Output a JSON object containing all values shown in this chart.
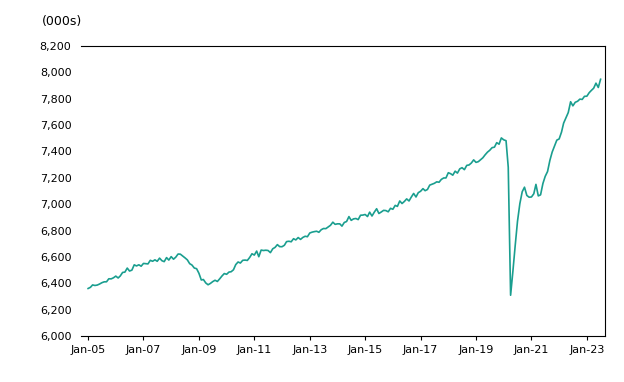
{
  "ylabel": "(000s)",
  "line_color": "#1a9e8f",
  "background_color": "#ffffff",
  "ylim": [
    6000,
    8200
  ],
  "yticks": [
    6000,
    6200,
    6400,
    6600,
    6800,
    7000,
    7200,
    7400,
    7600,
    7800,
    8000,
    8200
  ],
  "xtick_labels": [
    "Jan-05",
    "Jan-07",
    "Jan-09",
    "Jan-11",
    "Jan-13",
    "Jan-15",
    "Jan-17",
    "Jan-19",
    "Jan-21",
    "Jan-23"
  ],
  "xtick_years": [
    2005,
    2007,
    2009,
    2011,
    2013,
    2015,
    2017,
    2019,
    2021,
    2023
  ],
  "linewidth": 1.2,
  "data": [
    [
      2005,
      1,
      6355
    ],
    [
      2005,
      2,
      6372
    ],
    [
      2005,
      3,
      6380
    ],
    [
      2005,
      4,
      6365
    ],
    [
      2005,
      5,
      6390
    ],
    [
      2005,
      6,
      6398
    ],
    [
      2005,
      7,
      6385
    ],
    [
      2005,
      8,
      6402
    ],
    [
      2005,
      9,
      6418
    ],
    [
      2005,
      10,
      6428
    ],
    [
      2005,
      11,
      6440
    ],
    [
      2005,
      12,
      6448
    ],
    [
      2006,
      1,
      6452
    ],
    [
      2006,
      2,
      6465
    ],
    [
      2006,
      3,
      6478
    ],
    [
      2006,
      4,
      6490
    ],
    [
      2006,
      5,
      6498
    ],
    [
      2006,
      6,
      6512
    ],
    [
      2006,
      7,
      6505
    ],
    [
      2006,
      8,
      6518
    ],
    [
      2006,
      9,
      6522
    ],
    [
      2006,
      10,
      6535
    ],
    [
      2006,
      11,
      6540
    ],
    [
      2006,
      12,
      6548
    ],
    [
      2007,
      1,
      6558
    ],
    [
      2007,
      2,
      6548
    ],
    [
      2007,
      3,
      6562
    ],
    [
      2007,
      4,
      6570
    ],
    [
      2007,
      5,
      6575
    ],
    [
      2007,
      6,
      6582
    ],
    [
      2007,
      7,
      6575
    ],
    [
      2007,
      8,
      6568
    ],
    [
      2007,
      9,
      6572
    ],
    [
      2007,
      10,
      6578
    ],
    [
      2007,
      11,
      6585
    ],
    [
      2007,
      12,
      6592
    ],
    [
      2008,
      1,
      6600
    ],
    [
      2008,
      2,
      6608
    ],
    [
      2008,
      3,
      6615
    ],
    [
      2008,
      4,
      6620
    ],
    [
      2008,
      5,
      6612
    ],
    [
      2008,
      6,
      6605
    ],
    [
      2008,
      7,
      6595
    ],
    [
      2008,
      8,
      6582
    ],
    [
      2008,
      9,
      6568
    ],
    [
      2008,
      10,
      6548
    ],
    [
      2008,
      11,
      6522
    ],
    [
      2008,
      12,
      6498
    ],
    [
      2009,
      1,
      6472
    ],
    [
      2009,
      2,
      6448
    ],
    [
      2009,
      3,
      6425
    ],
    [
      2009,
      4,
      6408
    ],
    [
      2009,
      5,
      6398
    ],
    [
      2009,
      6,
      6392
    ],
    [
      2009,
      7,
      6400
    ],
    [
      2009,
      8,
      6412
    ],
    [
      2009,
      9,
      6425
    ],
    [
      2009,
      10,
      6438
    ],
    [
      2009,
      11,
      6452
    ],
    [
      2009,
      12,
      6462
    ],
    [
      2010,
      1,
      6475
    ],
    [
      2010,
      2,
      6488
    ],
    [
      2010,
      3,
      6502
    ],
    [
      2010,
      4,
      6518
    ],
    [
      2010,
      5,
      6532
    ],
    [
      2010,
      6,
      6545
    ],
    [
      2010,
      7,
      6555
    ],
    [
      2010,
      8,
      6562
    ],
    [
      2010,
      9,
      6572
    ],
    [
      2010,
      10,
      6582
    ],
    [
      2010,
      11,
      6592
    ],
    [
      2010,
      12,
      6605
    ],
    [
      2011,
      1,
      6615
    ],
    [
      2011,
      2,
      6625
    ],
    [
      2011,
      3,
      6635
    ],
    [
      2011,
      4,
      6642
    ],
    [
      2011,
      5,
      6648
    ],
    [
      2011,
      6,
      6655
    ],
    [
      2011,
      7,
      6648
    ],
    [
      2011,
      8,
      6658
    ],
    [
      2011,
      9,
      6665
    ],
    [
      2011,
      10,
      6668
    ],
    [
      2011,
      11,
      6675
    ],
    [
      2011,
      12,
      6685
    ],
    [
      2012,
      1,
      6688
    ],
    [
      2012,
      2,
      6695
    ],
    [
      2012,
      3,
      6705
    ],
    [
      2012,
      4,
      6715
    ],
    [
      2012,
      5,
      6722
    ],
    [
      2012,
      6,
      6732
    ],
    [
      2012,
      7,
      6728
    ],
    [
      2012,
      8,
      6735
    ],
    [
      2012,
      9,
      6742
    ],
    [
      2012,
      10,
      6752
    ],
    [
      2012,
      11,
      6762
    ],
    [
      2012,
      12,
      6772
    ],
    [
      2013,
      1,
      6778
    ],
    [
      2013,
      2,
      6785
    ],
    [
      2013,
      3,
      6792
    ],
    [
      2013,
      4,
      6798
    ],
    [
      2013,
      5,
      6805
    ],
    [
      2013,
      6,
      6812
    ],
    [
      2013,
      7,
      6820
    ],
    [
      2013,
      8,
      6825
    ],
    [
      2013,
      9,
      6830
    ],
    [
      2013,
      10,
      6835
    ],
    [
      2013,
      11,
      6840
    ],
    [
      2013,
      12,
      6845
    ],
    [
      2014,
      1,
      6848
    ],
    [
      2014,
      2,
      6852
    ],
    [
      2014,
      3,
      6858
    ],
    [
      2014,
      4,
      6862
    ],
    [
      2014,
      5,
      6868
    ],
    [
      2014,
      6,
      6875
    ],
    [
      2014,
      7,
      6880
    ],
    [
      2014,
      8,
      6885
    ],
    [
      2014,
      9,
      6892
    ],
    [
      2014,
      10,
      6898
    ],
    [
      2014,
      11,
      6902
    ],
    [
      2014,
      12,
      6908
    ],
    [
      2015,
      1,
      6912
    ],
    [
      2015,
      2,
      6918
    ],
    [
      2015,
      3,
      6922
    ],
    [
      2015,
      4,
      6928
    ],
    [
      2015,
      5,
      6932
    ],
    [
      2015,
      6,
      6938
    ],
    [
      2015,
      7,
      6942
    ],
    [
      2015,
      8,
      6948
    ],
    [
      2015,
      9,
      6952
    ],
    [
      2015,
      10,
      6958
    ],
    [
      2015,
      11,
      6962
    ],
    [
      2015,
      12,
      6968
    ],
    [
      2016,
      1,
      6975
    ],
    [
      2016,
      2,
      6985
    ],
    [
      2016,
      3,
      6995
    ],
    [
      2016,
      4,
      7005
    ],
    [
      2016,
      5,
      7015
    ],
    [
      2016,
      6,
      7025
    ],
    [
      2016,
      7,
      7030
    ],
    [
      2016,
      8,
      7040
    ],
    [
      2016,
      9,
      7052
    ],
    [
      2016,
      10,
      7065
    ],
    [
      2016,
      11,
      7075
    ],
    [
      2016,
      12,
      7085
    ],
    [
      2017,
      1,
      7095
    ],
    [
      2017,
      2,
      7108
    ],
    [
      2017,
      3,
      7118
    ],
    [
      2017,
      4,
      7128
    ],
    [
      2017,
      5,
      7138
    ],
    [
      2017,
      6,
      7148
    ],
    [
      2017,
      7,
      7155
    ],
    [
      2017,
      8,
      7165
    ],
    [
      2017,
      9,
      7175
    ],
    [
      2017,
      10,
      7185
    ],
    [
      2017,
      11,
      7195
    ],
    [
      2017,
      12,
      7208
    ],
    [
      2018,
      1,
      7215
    ],
    [
      2018,
      2,
      7225
    ],
    [
      2018,
      3,
      7235
    ],
    [
      2018,
      4,
      7242
    ],
    [
      2018,
      5,
      7248
    ],
    [
      2018,
      6,
      7258
    ],
    [
      2018,
      7,
      7262
    ],
    [
      2018,
      8,
      7272
    ],
    [
      2018,
      9,
      7282
    ],
    [
      2018,
      10,
      7292
    ],
    [
      2018,
      11,
      7302
    ],
    [
      2018,
      12,
      7312
    ],
    [
      2019,
      1,
      7320
    ],
    [
      2019,
      2,
      7332
    ],
    [
      2019,
      3,
      7348
    ],
    [
      2019,
      4,
      7362
    ],
    [
      2019,
      5,
      7375
    ],
    [
      2019,
      6,
      7390
    ],
    [
      2019,
      7,
      7405
    ],
    [
      2019,
      8,
      7418
    ],
    [
      2019,
      9,
      7432
    ],
    [
      2019,
      10,
      7448
    ],
    [
      2019,
      11,
      7458
    ],
    [
      2019,
      12,
      7468
    ],
    [
      2020,
      1,
      7480
    ],
    [
      2020,
      2,
      7492
    ],
    [
      2020,
      3,
      7280
    ],
    [
      2020,
      4,
      6310
    ],
    [
      2020,
      5,
      6490
    ],
    [
      2020,
      6,
      6680
    ],
    [
      2020,
      7,
      6865
    ],
    [
      2020,
      8,
      7005
    ],
    [
      2020,
      9,
      7105
    ],
    [
      2020,
      10,
      7148
    ],
    [
      2020,
      11,
      7072
    ],
    [
      2020,
      12,
      7042
    ],
    [
      2021,
      1,
      7052
    ],
    [
      2021,
      2,
      7095
    ],
    [
      2021,
      3,
      7148
    ],
    [
      2021,
      4,
      7058
    ],
    [
      2021,
      5,
      7082
    ],
    [
      2021,
      6,
      7155
    ],
    [
      2021,
      7,
      7210
    ],
    [
      2021,
      8,
      7262
    ],
    [
      2021,
      9,
      7328
    ],
    [
      2021,
      10,
      7388
    ],
    [
      2021,
      11,
      7428
    ],
    [
      2021,
      12,
      7472
    ],
    [
      2022,
      1,
      7512
    ],
    [
      2022,
      2,
      7558
    ],
    [
      2022,
      3,
      7608
    ],
    [
      2022,
      4,
      7648
    ],
    [
      2022,
      5,
      7688
    ],
    [
      2022,
      6,
      7728
    ],
    [
      2022,
      7,
      7738
    ],
    [
      2022,
      8,
      7758
    ],
    [
      2022,
      9,
      7768
    ],
    [
      2022,
      10,
      7788
    ],
    [
      2022,
      11,
      7798
    ],
    [
      2022,
      12,
      7808
    ],
    [
      2023,
      1,
      7828
    ],
    [
      2023,
      2,
      7848
    ],
    [
      2023,
      3,
      7868
    ],
    [
      2023,
      4,
      7878
    ],
    [
      2023,
      5,
      7888
    ],
    [
      2023,
      6,
      7908
    ],
    [
      2023,
      7,
      7938
    ]
  ]
}
